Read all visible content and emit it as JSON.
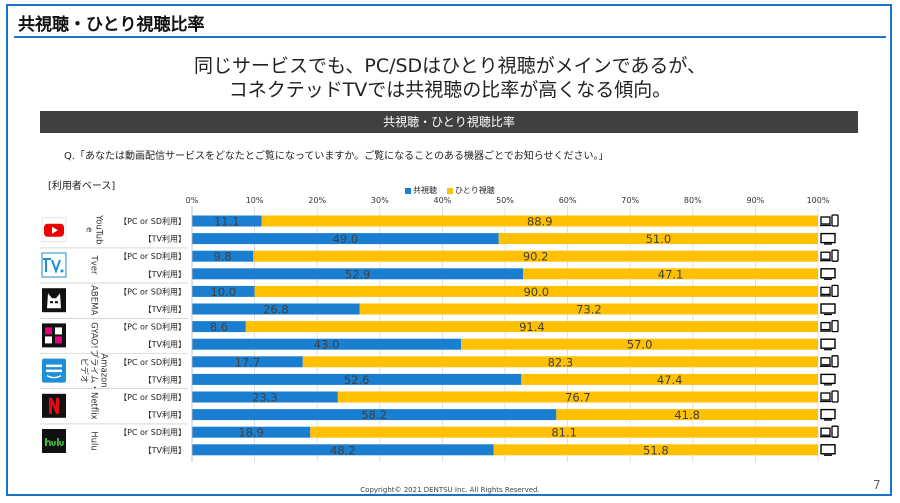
{
  "slide": {
    "title": "共視聴・ひとり視聴比率",
    "headline_line1": "同じサービスでも、PC/SDはひとり視聴がメインであるが、",
    "headline_line2": "コネクテッドTVでは共視聴の比率が高くなる傾向。",
    "section_label": "共視聴・ひとり視聴比率",
    "question": "Q.「あなたは動画配信サービスをどなたとご覧になっていますか。ご覧になることのある機器ごとでお知らせください。」",
    "basis": "[利用者ベース]",
    "copyright": "Copyright© 2021 DENTSU Inc. All Rights Reserved.",
    "page_number": "7"
  },
  "colors": {
    "frame": "#1a73c7",
    "co_viewing": "#1a7fd0",
    "solo_viewing": "#ffc000",
    "section_bar": "#404040"
  },
  "chart_data": {
    "type": "bar",
    "orientation": "horizontal",
    "stacked": true,
    "percent_scale": true,
    "xlim": [
      0,
      100
    ],
    "x_ticks": [
      "0%",
      "10%",
      "20%",
      "30%",
      "40%",
      "50%",
      "60%",
      "70%",
      "80%",
      "90%",
      "100%"
    ],
    "grid": true,
    "legend": [
      "共視聴",
      "ひとり視聴"
    ],
    "legend_position": "top",
    "groups": [
      {
        "service": "YouTube",
        "label": "YouTub\ne",
        "logo_icon": "youtube-logo-icon",
        "rows": [
          {
            "device": "【PC or SD利用】",
            "device_icon": "pc-smartphone-icon",
            "co": 11.1,
            "solo": 88.9
          },
          {
            "device": "【TV利用】",
            "device_icon": "tv-icon",
            "co": 49.0,
            "solo": 51.0
          }
        ]
      },
      {
        "service": "Tver",
        "label": "Tver",
        "logo_icon": "tver-logo-icon",
        "rows": [
          {
            "device": "【PC or SD利用】",
            "device_icon": "pc-smartphone-icon",
            "co": 9.8,
            "solo": 90.2
          },
          {
            "device": "【TV利用】",
            "device_icon": "tv-icon",
            "co": 52.9,
            "solo": 47.1
          }
        ]
      },
      {
        "service": "ABEMA",
        "label": "ABEMA",
        "logo_icon": "abema-logo-icon",
        "rows": [
          {
            "device": "【PC or SD利用】",
            "device_icon": "pc-smartphone-icon",
            "co": 10.0,
            "solo": 90.0
          },
          {
            "device": "【TV利用】",
            "device_icon": "tv-icon",
            "co": 26.8,
            "solo": 73.2
          }
        ]
      },
      {
        "service": "GYAO!",
        "label": "GYAO!",
        "logo_icon": "gyao-logo-icon",
        "rows": [
          {
            "device": "【PC or SD利用】",
            "device_icon": "pc-smartphone-icon",
            "co": 8.6,
            "solo": 91.4
          },
          {
            "device": "【TV利用】",
            "device_icon": "tv-icon",
            "co": 43.0,
            "solo": 57.0
          }
        ]
      },
      {
        "service": "Amazonプライム・ビデオ",
        "label": "Amazon\nプライム・\nビデオ",
        "logo_icon": "prime-video-logo-icon",
        "rows": [
          {
            "device": "【PC or SD利用】",
            "device_icon": "pc-smartphone-icon",
            "co": 17.7,
            "solo": 82.3
          },
          {
            "device": "【TV利用】",
            "device_icon": "tv-icon",
            "co": 52.6,
            "solo": 47.4
          }
        ]
      },
      {
        "service": "Netflix",
        "label": "Netflix",
        "logo_icon": "netflix-logo-icon",
        "rows": [
          {
            "device": "【PC or SD利用】",
            "device_icon": "pc-smartphone-icon",
            "co": 23.3,
            "solo": 76.7
          },
          {
            "device": "【TV利用】",
            "device_icon": "tv-icon",
            "co": 58.2,
            "solo": 41.8
          }
        ]
      },
      {
        "service": "Hulu",
        "label": "Hulu",
        "logo_icon": "hulu-logo-icon",
        "rows": [
          {
            "device": "【PC or SD利用】",
            "device_icon": "pc-smartphone-icon",
            "co": 18.9,
            "solo": 81.1
          },
          {
            "device": "【TV利用】",
            "device_icon": "tv-icon",
            "co": 48.2,
            "solo": 51.8
          }
        ]
      }
    ]
  }
}
